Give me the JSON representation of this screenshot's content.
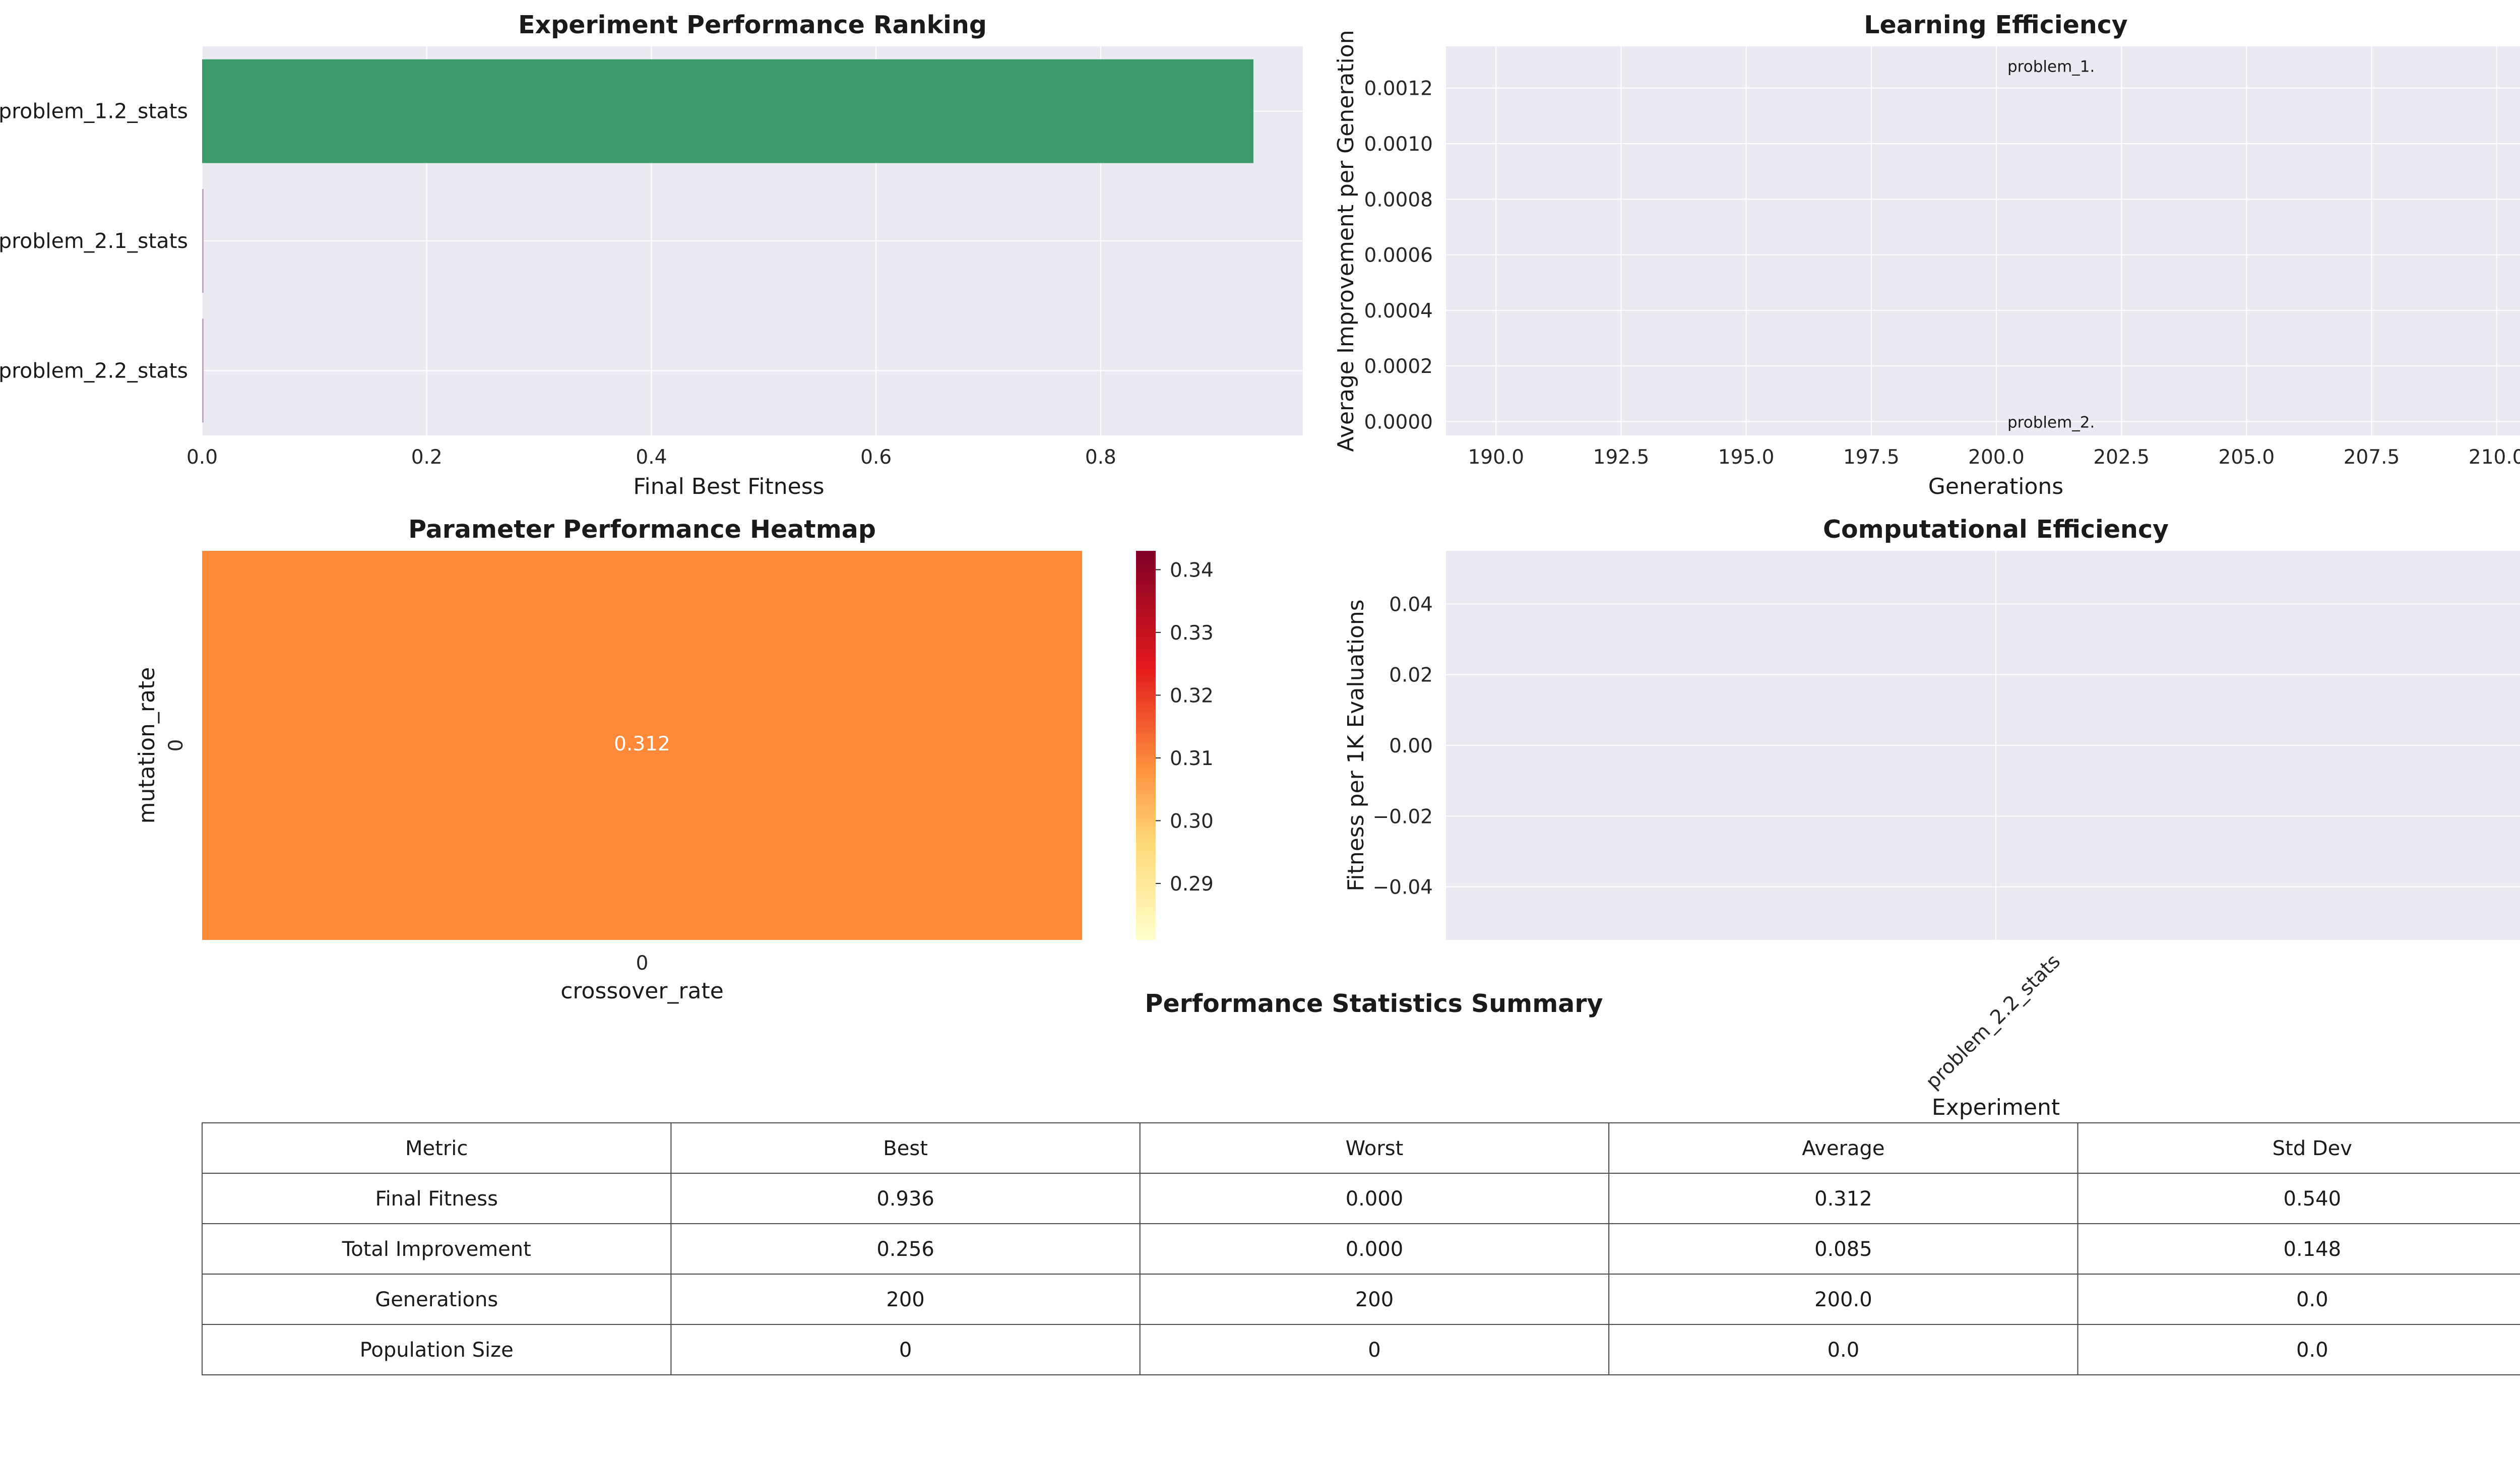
{
  "chart_data": [
    {
      "type": "bar",
      "orientation": "horizontal",
      "title": "Experiment Performance Ranking",
      "xlabel": "Final Best Fitness",
      "ylabel": "",
      "categories": [
        "problem_1.2_stats",
        "problem_2.1_stats",
        "problem_2.2_stats"
      ],
      "values": [
        0.936,
        0.0,
        0.0
      ],
      "xlim": [
        0,
        0.98
      ],
      "xticks": [
        "0.0",
        "0.2",
        "0.4",
        "0.6",
        "0.8"
      ],
      "colors": [
        "#3d9a6b",
        "#c9a0c0",
        "#c9a0c0"
      ],
      "grid": true
    },
    {
      "type": "scatter",
      "title": "Learning Efficiency",
      "xlabel": "Generations",
      "ylabel": "Average Improvement per Generation",
      "xlim": [
        189,
        211
      ],
      "ylim": [
        -5e-05,
        0.00135
      ],
      "xticks": [
        "190.0",
        "192.5",
        "195.0",
        "197.5",
        "200.0",
        "202.5",
        "205.0",
        "207.5",
        "210.0"
      ],
      "yticks": [
        "0.0000",
        "0.0002",
        "0.0004",
        "0.0006",
        "0.0008",
        "0.0010",
        "0.0012"
      ],
      "points": [
        {
          "x": 200,
          "y": 0.00128,
          "label": "problem_1."
        },
        {
          "x": 200,
          "y": 0.0,
          "label": "problem_2."
        }
      ],
      "grid": true
    },
    {
      "type": "heatmap",
      "title": "Parameter Performance Heatmap",
      "xlabel": "crossover_rate",
      "ylabel": "mutation_rate",
      "x_categories": [
        "0"
      ],
      "y_categories": [
        "0"
      ],
      "values": [
        [
          0.312
        ]
      ],
      "value_labels": [
        [
          "0.312"
        ]
      ],
      "cell_color": "#fc8a3a",
      "colorbar": {
        "min": 0.281,
        "max": 0.343,
        "ticks": [
          "0.29",
          "0.30",
          "0.31",
          "0.32",
          "0.33",
          "0.34"
        ],
        "colormap": "YlOrRd"
      }
    },
    {
      "type": "bar",
      "title": "Computational Efficiency",
      "xlabel": "Experiment",
      "ylabel": "Fitness per 1K Evaluations",
      "categories": [
        "problem_2.2_stats"
      ],
      "values": [
        0.0
      ],
      "ylim": [
        -0.055,
        0.055
      ],
      "yticks": [
        "0.04",
        "0.02",
        "0.00",
        "−0.02",
        "−0.04"
      ],
      "grid": true
    },
    {
      "type": "table",
      "title": "Performance Statistics Summary",
      "columns": [
        "Metric",
        "Best",
        "Worst",
        "Average",
        "Std Dev"
      ],
      "rows": [
        [
          "Final Fitness",
          "0.936",
          "0.000",
          "0.312",
          "0.540"
        ],
        [
          "Total Improvement",
          "0.256",
          "0.000",
          "0.085",
          "0.148"
        ],
        [
          "Generations",
          "200",
          "200",
          "200.0",
          "0.0"
        ],
        [
          "Population Size",
          "0",
          "0",
          "0.0",
          "0.0"
        ]
      ]
    }
  ],
  "colors": {
    "axes_background": "#eaeaf2",
    "grid": "#ffffff",
    "text": "#1a1a1a"
  }
}
